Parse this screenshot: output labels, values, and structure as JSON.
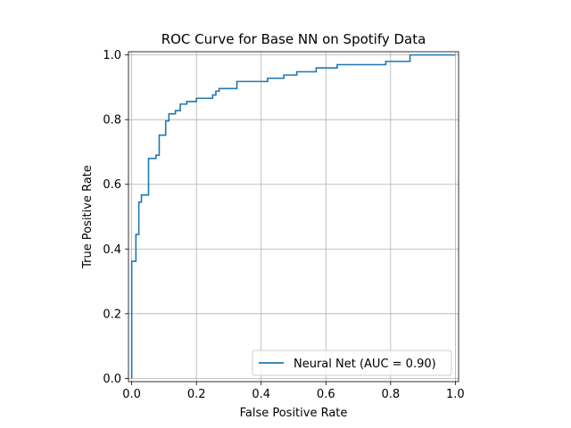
{
  "chart_data": {
    "type": "line",
    "title": "ROC Curve for Base NN on Spotify Data",
    "xlabel": "False Positive Rate",
    "ylabel": "True Positive Rate",
    "xlim": [
      -0.01,
      1.01
    ],
    "ylim": [
      -0.01,
      1.01
    ],
    "xticks": [
      0.0,
      0.2,
      0.4,
      0.6,
      0.8,
      1.0
    ],
    "yticks": [
      0.0,
      0.2,
      0.4,
      0.6,
      0.8,
      1.0
    ],
    "xtick_labels": [
      "0.0",
      "0.2",
      "0.4",
      "0.6",
      "0.8",
      "1.0"
    ],
    "ytick_labels": [
      "0.0",
      "0.2",
      "0.4",
      "0.6",
      "0.8",
      "1.0"
    ],
    "grid": true,
    "legend_position": "lower-right",
    "series": [
      {
        "name": "Neural Net (AUC = 0.90)",
        "color": "#1f77b4",
        "step": true,
        "points": [
          [
            0.0,
            0.0
          ],
          [
            0.0,
            0.362
          ],
          [
            0.013,
            0.362
          ],
          [
            0.013,
            0.445
          ],
          [
            0.022,
            0.445
          ],
          [
            0.022,
            0.545
          ],
          [
            0.03,
            0.545
          ],
          [
            0.03,
            0.567
          ],
          [
            0.052,
            0.567
          ],
          [
            0.052,
            0.68
          ],
          [
            0.075,
            0.68
          ],
          [
            0.075,
            0.69
          ],
          [
            0.085,
            0.69
          ],
          [
            0.085,
            0.752
          ],
          [
            0.105,
            0.752
          ],
          [
            0.105,
            0.796
          ],
          [
            0.115,
            0.796
          ],
          [
            0.115,
            0.818
          ],
          [
            0.135,
            0.818
          ],
          [
            0.135,
            0.828
          ],
          [
            0.15,
            0.828
          ],
          [
            0.15,
            0.848
          ],
          [
            0.17,
            0.848
          ],
          [
            0.17,
            0.856
          ],
          [
            0.2,
            0.856
          ],
          [
            0.2,
            0.866
          ],
          [
            0.25,
            0.866
          ],
          [
            0.25,
            0.876
          ],
          [
            0.26,
            0.876
          ],
          [
            0.26,
            0.888
          ],
          [
            0.27,
            0.888
          ],
          [
            0.27,
            0.896
          ],
          [
            0.325,
            0.896
          ],
          [
            0.325,
            0.918
          ],
          [
            0.42,
            0.918
          ],
          [
            0.42,
            0.928
          ],
          [
            0.47,
            0.928
          ],
          [
            0.47,
            0.938
          ],
          [
            0.51,
            0.938
          ],
          [
            0.51,
            0.948
          ],
          [
            0.57,
            0.948
          ],
          [
            0.57,
            0.96
          ],
          [
            0.635,
            0.96
          ],
          [
            0.635,
            0.97
          ],
          [
            0.785,
            0.97
          ],
          [
            0.785,
            0.98
          ],
          [
            0.86,
            0.98
          ],
          [
            0.86,
            1.0
          ],
          [
            1.0,
            1.0
          ]
        ]
      }
    ]
  }
}
